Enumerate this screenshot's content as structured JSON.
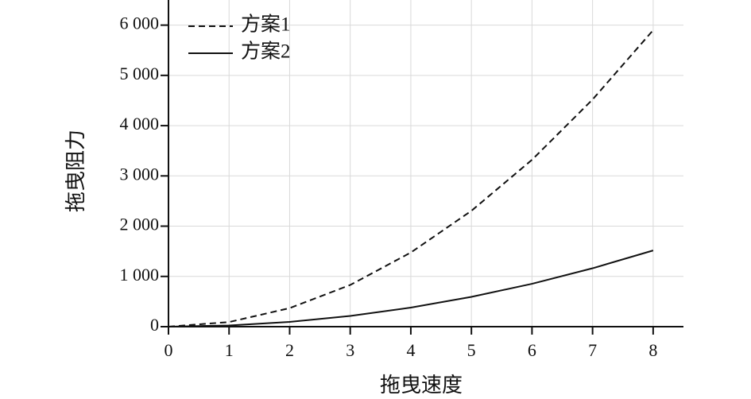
{
  "chart_data": {
    "type": "line",
    "x_label": "拖曳速度",
    "y_label": "拖曳阻力",
    "x": [
      0,
      1,
      2,
      3,
      4,
      5,
      6,
      7,
      8
    ],
    "series": [
      {
        "name": "方案1",
        "color": "#111111",
        "dash": true,
        "values": [
          0,
          92,
          369,
          830,
          1475,
          2305,
          3320,
          4520,
          5900
        ]
      },
      {
        "name": "方案2",
        "color": "#111111",
        "dash": false,
        "values": [
          0,
          24,
          95,
          213,
          380,
          593,
          853,
          1162,
          1516
        ]
      }
    ],
    "xlim": [
      0,
      8.5
    ],
    "ylim": [
      0,
      6500
    ],
    "xticks": [
      0,
      1,
      2,
      3,
      4,
      5,
      6,
      7,
      8
    ],
    "yticks": [
      0,
      {
        "value": 1000,
        "label": "1 000"
      },
      {
        "value": 2000,
        "label": "2 000"
      },
      {
        "value": 3000,
        "label": "3 000"
      },
      {
        "value": 4000,
        "label": "4 000"
      },
      {
        "value": 5000,
        "label": "5 000"
      },
      {
        "value": 6000,
        "label": "6 000"
      }
    ],
    "grid": true,
    "legend": "top-left"
  }
}
